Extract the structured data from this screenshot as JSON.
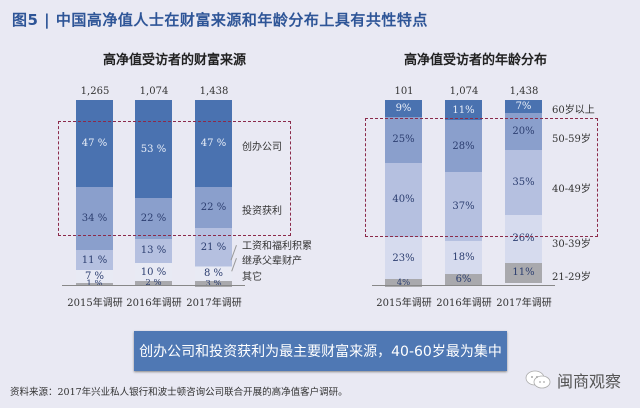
{
  "title": "图5 | 中国高净值人士在财富来源和年龄分布上具有共性特点",
  "banner": "创办公司和投资获利为最主要财富来源，40-60岁最为集中",
  "source": "资料来源：2017年兴业私人银行和波士顿咨询公司联合开展的高净值客户调研。",
  "watermark": "闽商观察",
  "colors": {
    "background": "#e9e9f3",
    "title": "#2e5597",
    "banner": "#4f78b4",
    "dashbox": "#8b2a4a",
    "seg_dark": "#4a72b0",
    "seg_mid": "#8a9fcc",
    "seg_light": "#b5c0e0",
    "seg_lighter": "#d6dbee",
    "seg_lightest": "#e8eaf4",
    "seg_grey": "#a9a9ad"
  },
  "left": {
    "subtitle": "高净值受访者的财富来源",
    "totals": [
      "1,265",
      "1,074",
      "1,438"
    ],
    "xlabels": [
      "2015年调研",
      "2016年调研",
      "2017年调研"
    ],
    "legend": [
      "创办公司",
      "投资获利",
      "工资和福利积累",
      "继承父辈财产",
      "其它"
    ],
    "labels": [
      [
        "47 %",
        "34 %",
        "11 %",
        "7 %",
        "1 %"
      ],
      [
        "53 %",
        "22 %",
        "13 %",
        "10 %",
        "2 %"
      ],
      [
        "47 %",
        "22 %",
        "21 %",
        "8 %",
        "3 %"
      ]
    ]
  },
  "right": {
    "subtitle": "高净值受访者的年龄分布",
    "totals": [
      "101",
      "1,074",
      "1,438"
    ],
    "xlabels": [
      "2015年调研",
      "2016年调研",
      "2017年调研"
    ],
    "legend": [
      "60岁以上",
      "50-59岁",
      "40-49岁",
      "30-39岁",
      "21-29岁"
    ],
    "labels": [
      [
        "9%",
        "25%",
        "40%",
        "23%",
        "4%"
      ],
      [
        "11%",
        "28%",
        "37%",
        "18%",
        "6%"
      ],
      [
        "7%",
        "20%",
        "35%",
        "26%",
        "11%"
      ]
    ]
  },
  "chart_data": [
    {
      "type": "bar",
      "stacked": true,
      "title": "高净值受访者的财富来源",
      "categories": [
        "2015年调研",
        "2016年调研",
        "2017年调研"
      ],
      "sample_sizes": [
        1265,
        1074,
        1438
      ],
      "series": [
        {
          "name": "创办公司",
          "values": [
            47,
            53,
            47
          ]
        },
        {
          "name": "投资获利",
          "values": [
            34,
            22,
            22
          ]
        },
        {
          "name": "工资和福利积累",
          "values": [
            11,
            13,
            21
          ]
        },
        {
          "name": "继承父辈财产",
          "values": [
            7,
            10,
            8
          ]
        },
        {
          "name": "其它",
          "values": [
            1,
            2,
            3
          ]
        }
      ],
      "ylim": [
        0,
        100
      ],
      "unit": "%",
      "legend_position": "right",
      "annotation": "dashed box highlighting 创办公司 and 投资获利"
    },
    {
      "type": "bar",
      "stacked": true,
      "title": "高净值受访者的年龄分布",
      "categories": [
        "2015年调研",
        "2016年调研",
        "2017年调研"
      ],
      "sample_sizes": [
        101,
        1074,
        1438
      ],
      "series": [
        {
          "name": "60岁以上",
          "values": [
            9,
            11,
            7
          ]
        },
        {
          "name": "50-59岁",
          "values": [
            25,
            28,
            20
          ]
        },
        {
          "name": "40-49岁",
          "values": [
            40,
            37,
            35
          ]
        },
        {
          "name": "30-39岁",
          "values": [
            23,
            18,
            26
          ]
        },
        {
          "name": "21-29岁",
          "values": [
            4,
            6,
            11
          ]
        }
      ],
      "ylim": [
        0,
        100
      ],
      "unit": "%",
      "legend_position": "right",
      "annotation": "dashed box highlighting 40-59岁"
    }
  ]
}
